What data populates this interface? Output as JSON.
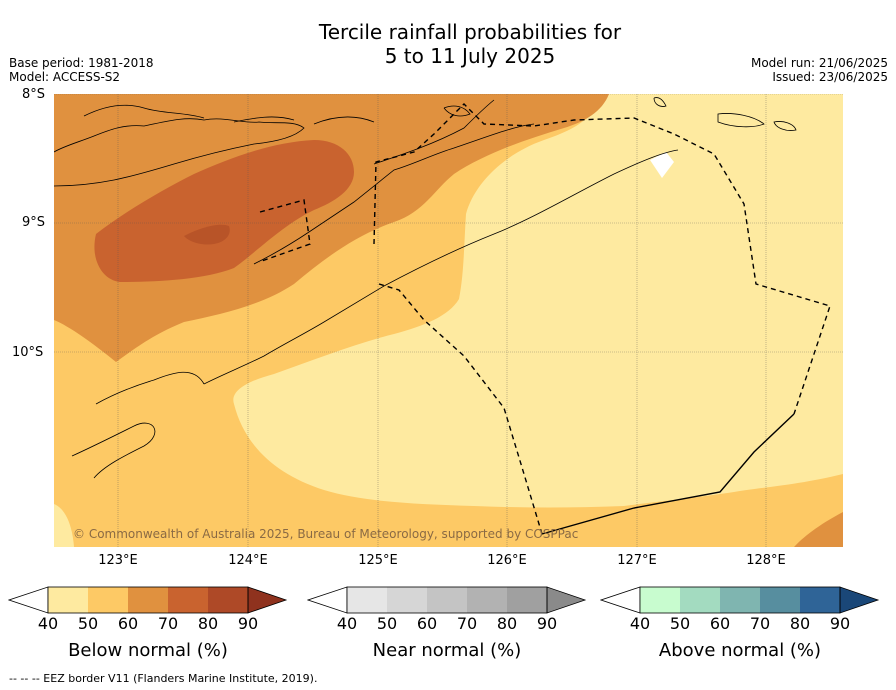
{
  "title": {
    "line1": "Tercile rainfall probabilities for",
    "line2": "5 to 11 July 2025"
  },
  "meta": {
    "base_period": "Base period: 1981-2018",
    "model": "Model: ACCESS-S2",
    "model_run": "Model run: 21/06/2025",
    "issued": "Issued: 23/06/2025"
  },
  "map": {
    "lat_labels": [
      "8°S",
      "9°S",
      "10°S"
    ],
    "lon_labels": [
      "123°E",
      "124°E",
      "125°E",
      "126°E",
      "127°E",
      "128°E"
    ],
    "credit": "© Commonwealth of Australia 2025, Bureau of Meteorology, supported by COSPPac",
    "colors": {
      "below_40_50": "#feeaa0",
      "below_50_60": "#fdc965",
      "below_60_70": "#e0913f",
      "below_70_80": "#c9632f"
    }
  },
  "colorbars": [
    {
      "title": "Below normal (%)",
      "ticks": [
        "40",
        "50",
        "60",
        "70",
        "80",
        "90"
      ],
      "colors": [
        "#feeaa0",
        "#fdc965",
        "#e0913f",
        "#c9632f",
        "#ae4927",
        "#8f321e"
      ]
    },
    {
      "title": "Near normal (%)",
      "ticks": [
        "40",
        "50",
        "60",
        "70",
        "80",
        "90"
      ],
      "colors": [
        "#e6e6e6",
        "#d6d6d6",
        "#c4c4c4",
        "#b2b2b2",
        "#a0a0a0",
        "#8a8a8a"
      ]
    },
    {
      "title": "Above normal (%)",
      "ticks": [
        "40",
        "50",
        "60",
        "70",
        "80",
        "90"
      ],
      "colors": [
        "#c8fccf",
        "#a3dbc0",
        "#7fb5b0",
        "#578e9f",
        "#2f6497",
        "#1a4778"
      ]
    }
  ],
  "legend": "-- -- -- EEZ border V11 (Flanders Marine Institute, 2019)."
}
